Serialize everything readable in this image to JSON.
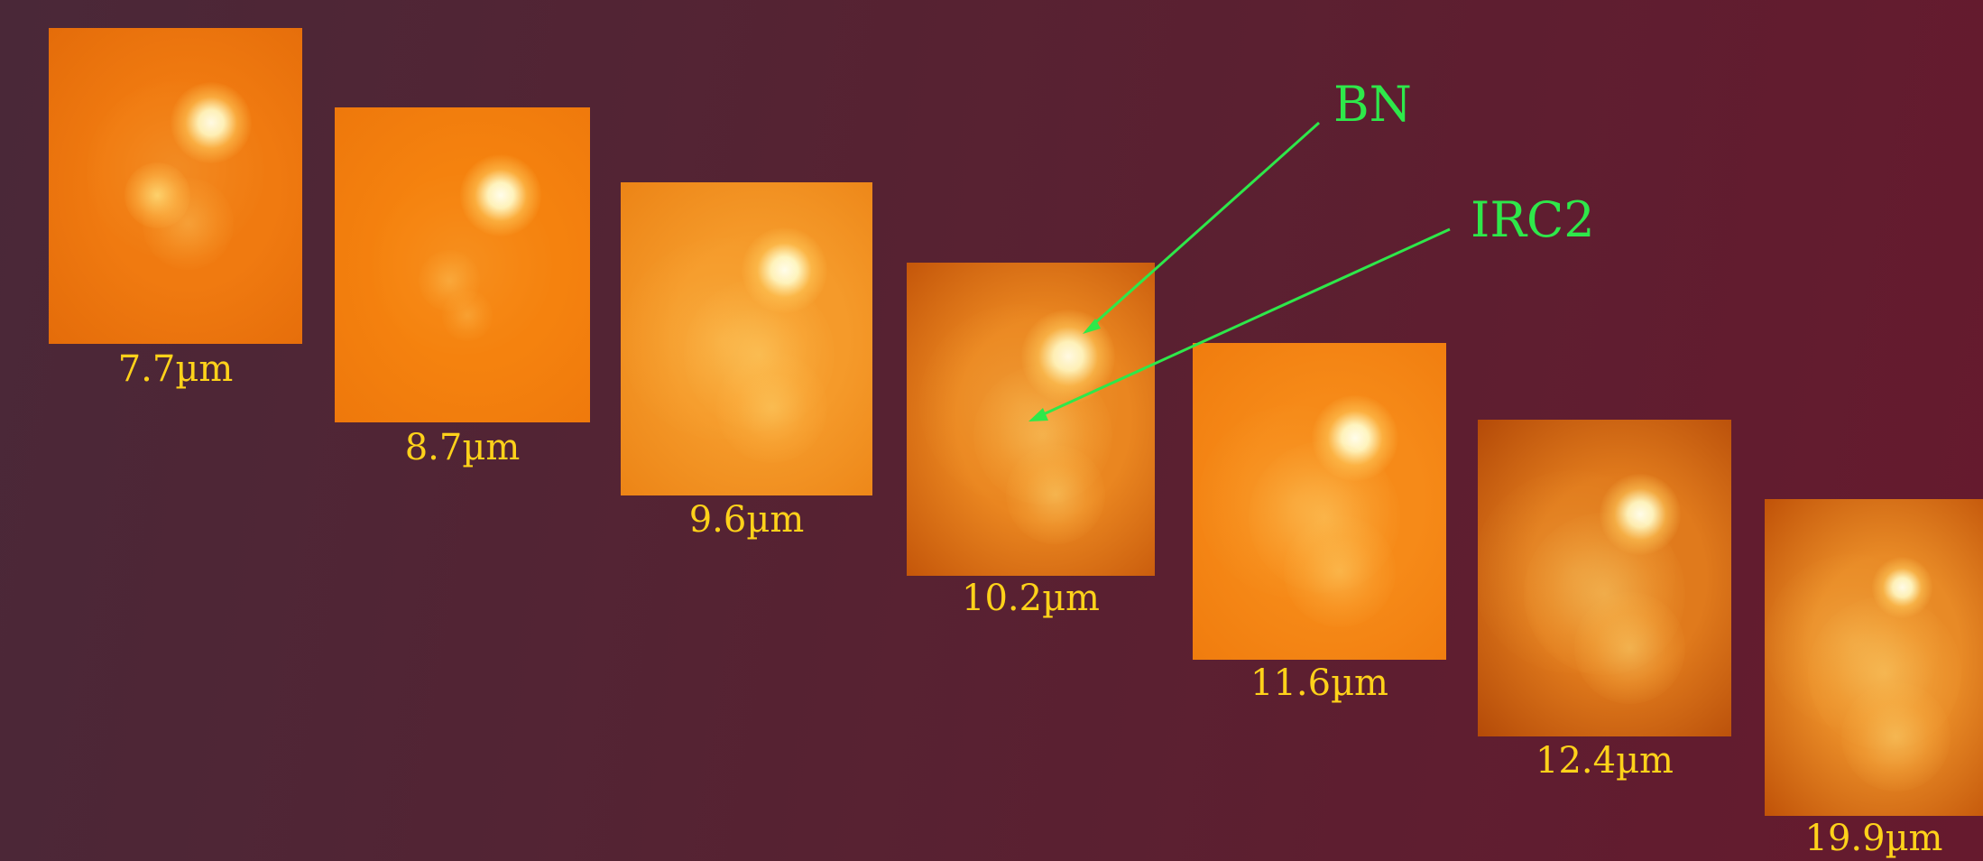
{
  "panels": [
    {
      "label": "7.7µm",
      "tone": "#f07a10",
      "edge": "#e46c0a"
    },
    {
      "label": "8.7µm",
      "tone": "#f5820e",
      "edge": "#ee780c"
    },
    {
      "label": "9.6µm",
      "tone": "#f59a2a",
      "edge": "#ec8416"
    },
    {
      "label": "10.2µm",
      "tone": "#ea8620",
      "edge": "#c4560a"
    },
    {
      "label": "11.6µm",
      "tone": "#f68a18",
      "edge": "#f07c0e"
    },
    {
      "label": "12.4µm",
      "tone": "#e07a1c",
      "edge": "#b44a08"
    },
    {
      "label": "19.9µm",
      "tone": "#e88a26",
      "edge": "#c05208"
    }
  ],
  "annotations": {
    "bn": "BN",
    "irc2": "IRC2"
  },
  "colors": {
    "caption": "#ffd21a",
    "annotation": "#2ee84a"
  }
}
